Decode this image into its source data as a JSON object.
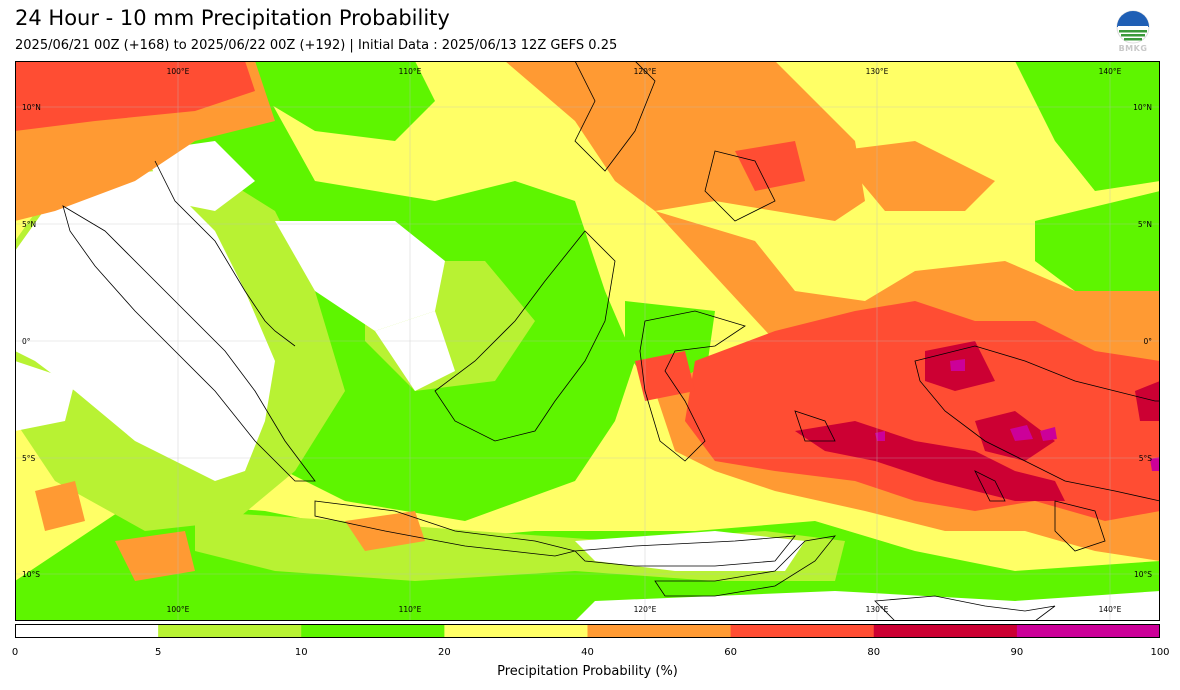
{
  "header": {
    "title": "24 Hour - 10 mm Precipitation Probability",
    "subtitle": "2025/06/21 00Z (+168) to 2025/06/22 00Z (+192) | Initial Data : 2025/06/13 12Z GEFS 0.25",
    "logo_text": "BMKG"
  },
  "map": {
    "lon_labels": [
      "100°E",
      "110°E",
      "120°E",
      "130°E",
      "140°E"
    ],
    "lat_labels": [
      "10°N",
      "5°N",
      "0°",
      "5°S",
      "10°S"
    ],
    "region": "Indonesia"
  },
  "legend": {
    "label": "Precipitation Probability (%)",
    "ticks": [
      "0",
      "5",
      "10",
      "20",
      "40",
      "60",
      "80",
      "90",
      "100"
    ],
    "bins": [
      {
        "from": 0,
        "to": 5,
        "color": "#ffffff"
      },
      {
        "from": 5,
        "to": 10,
        "color": "#b8f233"
      },
      {
        "from": 10,
        "to": 20,
        "color": "#5ef500"
      },
      {
        "from": 20,
        "to": 40,
        "color": "#ffff66"
      },
      {
        "from": 40,
        "to": 60,
        "color": "#ff9a33"
      },
      {
        "from": 60,
        "to": 80,
        "color": "#ff4d33"
      },
      {
        "from": 80,
        "to": 90,
        "color": "#cc0033"
      },
      {
        "from": 90,
        "to": 100,
        "color": "#cc0099"
      }
    ]
  }
}
